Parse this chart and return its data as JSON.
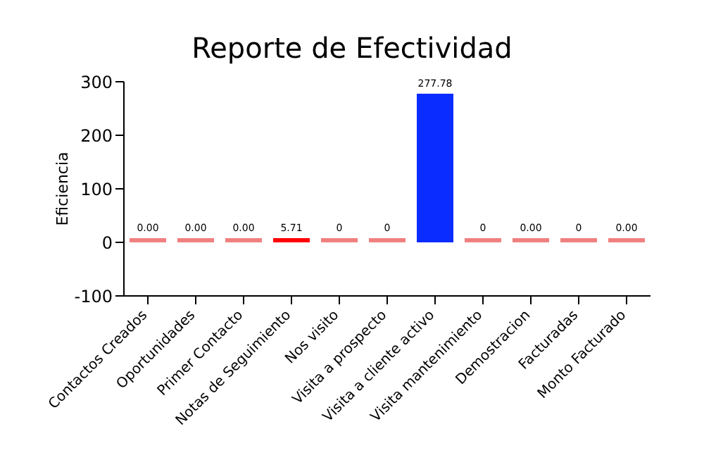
{
  "chart_data": {
    "type": "bar",
    "title": "Reporte de Efectividad",
    "ylabel": "Eficiencia",
    "categories": [
      "Contactos Creados",
      "Oportunidades",
      "Primer Contacto",
      "Notas de Seguimiento",
      "Nos visito",
      "Visita a prospecto",
      "Visita a cliente activo",
      "Visita mantenimiento",
      "Demostracion",
      "Facturadas",
      "Monto Facturado"
    ],
    "values": [
      0,
      0,
      0,
      5.71,
      0,
      0,
      277.78,
      0,
      0,
      0,
      0
    ],
    "value_labels": [
      "0.00",
      "0.00",
      "0.00",
      "5.71",
      "0",
      "0",
      "277.78",
      "0",
      "0.00",
      "0",
      "0.00"
    ],
    "colors": [
      "#f08080",
      "#f08080",
      "#f08080",
      "#ff0000",
      "#f08080",
      "#f08080",
      "#0a2cff",
      "#f08080",
      "#f08080",
      "#f08080",
      "#f08080"
    ],
    "ylim": [
      -100,
      300
    ],
    "yticks": [
      -100,
      0,
      100,
      200,
      300
    ],
    "grid": false
  }
}
